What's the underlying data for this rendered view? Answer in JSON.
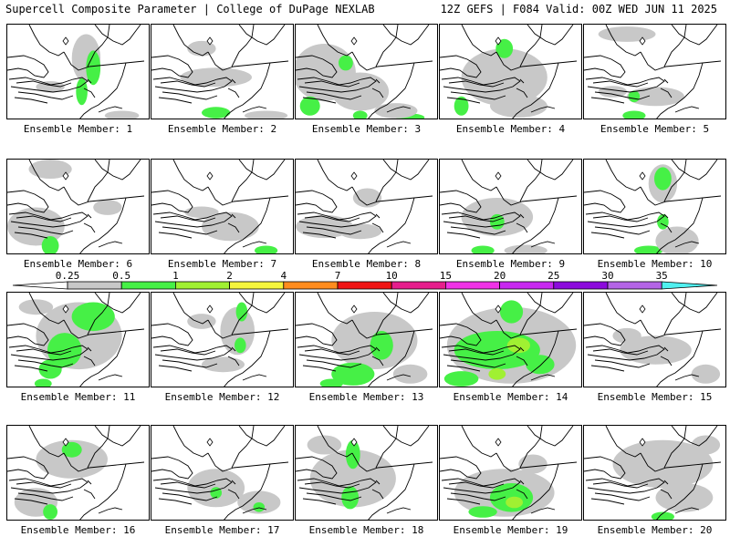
{
  "header": {
    "left_title": "Supercell Composite Parameter | College of DuPage NEXLAB",
    "right_title": "12Z GEFS | F084 Valid: 00Z WED JUN 11 2025"
  },
  "legend": {
    "thresholds": [
      "0.25",
      "0.5",
      "1",
      "2",
      "4",
      "7",
      "10",
      "15",
      "20",
      "25",
      "30",
      "35"
    ],
    "colors": [
      "#ffffff",
      "#c8c8c8",
      "#46f046",
      "#a0f032",
      "#f5f53c",
      "#ff8c1e",
      "#f01414",
      "#e61e8c",
      "#f032e6",
      "#c828f0",
      "#8c0adc",
      "#b464e6",
      "#50f0f0"
    ]
  },
  "member_label_prefix": "Ensemble Member: ",
  "members": [
    {
      "id": "1",
      "label": "Ensemble Member: 1",
      "blobs": [
        [
          "g",
          0.55,
          0.35,
          0.1,
          0.25
        ],
        [
          "G",
          0.6,
          0.45,
          0.05,
          0.18
        ],
        [
          "G",
          0.52,
          0.7,
          0.04,
          0.14
        ],
        [
          "g",
          0.8,
          0.95,
          0.12,
          0.05
        ],
        [
          "g",
          0.3,
          0.65,
          0.1,
          0.06
        ]
      ]
    },
    {
      "id": "2",
      "label": "Ensemble Member: 2",
      "blobs": [
        [
          "g",
          0.45,
          0.55,
          0.25,
          0.1
        ],
        [
          "g",
          0.35,
          0.25,
          0.1,
          0.08
        ],
        [
          "G",
          0.45,
          0.92,
          0.1,
          0.06
        ],
        [
          "g",
          0.8,
          0.95,
          0.15,
          0.05
        ]
      ]
    },
    {
      "id": "3",
      "label": "Ensemble Member: 3",
      "blobs": [
        [
          "g",
          0.2,
          0.5,
          0.22,
          0.3
        ],
        [
          "G",
          0.1,
          0.85,
          0.07,
          0.1
        ],
        [
          "G",
          0.35,
          0.4,
          0.05,
          0.08
        ],
        [
          "g",
          0.45,
          0.7,
          0.2,
          0.2
        ],
        [
          "G",
          0.45,
          0.95,
          0.05,
          0.05
        ],
        [
          "G",
          0.8,
          0.97,
          0.1,
          0.04
        ],
        [
          "g",
          0.7,
          0.9,
          0.15,
          0.08
        ]
      ]
    },
    {
      "id": "4",
      "label": "Ensemble Member: 4",
      "blobs": [
        [
          "g",
          0.45,
          0.55,
          0.3,
          0.3
        ],
        [
          "G",
          0.45,
          0.25,
          0.06,
          0.1
        ],
        [
          "G",
          0.15,
          0.85,
          0.05,
          0.1
        ],
        [
          "g",
          0.55,
          0.85,
          0.2,
          0.12
        ]
      ]
    },
    {
      "id": "5",
      "label": "Ensemble Member: 5",
      "blobs": [
        [
          "g",
          0.3,
          0.1,
          0.2,
          0.08
        ],
        [
          "g",
          0.5,
          0.75,
          0.2,
          0.1
        ],
        [
          "G",
          0.35,
          0.75,
          0.04,
          0.06
        ],
        [
          "G",
          0.35,
          0.95,
          0.08,
          0.05
        ],
        [
          "g",
          0.2,
          0.7,
          0.1,
          0.06
        ]
      ]
    },
    {
      "id": "6",
      "label": "Ensemble Member: 6",
      "blobs": [
        [
          "g",
          0.3,
          0.1,
          0.15,
          0.1
        ],
        [
          "g",
          0.2,
          0.7,
          0.2,
          0.2
        ],
        [
          "G",
          0.3,
          0.9,
          0.06,
          0.1
        ],
        [
          "g",
          0.7,
          0.5,
          0.1,
          0.08
        ]
      ]
    },
    {
      "id": "7",
      "label": "Ensemble Member: 7",
      "blobs": [
        [
          "g",
          0.55,
          0.7,
          0.2,
          0.15
        ],
        [
          "G",
          0.8,
          0.95,
          0.08,
          0.05
        ],
        [
          "g",
          0.35,
          0.55,
          0.12,
          0.06
        ]
      ]
    },
    {
      "id": "8",
      "label": "Ensemble Member: 8",
      "blobs": [
        [
          "g",
          0.5,
          0.4,
          0.1,
          0.1
        ],
        [
          "g",
          0.2,
          0.7,
          0.2,
          0.12
        ],
        [
          "g",
          0.45,
          0.75,
          0.15,
          0.08
        ]
      ]
    },
    {
      "id": "9",
      "label": "Ensemble Member: 9",
      "blobs": [
        [
          "g",
          0.4,
          0.6,
          0.25,
          0.2
        ],
        [
          "G",
          0.4,
          0.65,
          0.05,
          0.08
        ],
        [
          "G",
          0.3,
          0.95,
          0.08,
          0.05
        ],
        [
          "g",
          0.6,
          0.95,
          0.15,
          0.06
        ]
      ]
    },
    {
      "id": "10",
      "label": "Ensemble Member: 10",
      "blobs": [
        [
          "g",
          0.55,
          0.25,
          0.1,
          0.2
        ],
        [
          "G",
          0.55,
          0.2,
          0.06,
          0.12
        ],
        [
          "G",
          0.55,
          0.65,
          0.04,
          0.08
        ],
        [
          "G",
          0.45,
          0.95,
          0.1,
          0.05
        ],
        [
          "g",
          0.65,
          0.85,
          0.15,
          0.15
        ]
      ]
    },
    {
      "id": "11",
      "label": "Ensemble Member: 11",
      "blobs": [
        [
          "g",
          0.5,
          0.45,
          0.3,
          0.35
        ],
        [
          "G",
          0.6,
          0.25,
          0.15,
          0.15
        ],
        [
          "G",
          0.4,
          0.6,
          0.12,
          0.18
        ],
        [
          "G",
          0.3,
          0.8,
          0.08,
          0.1
        ],
        [
          "g",
          0.2,
          0.15,
          0.12,
          0.08
        ],
        [
          "G",
          0.25,
          0.95,
          0.06,
          0.05
        ]
      ]
    },
    {
      "id": "12",
      "label": "Ensemble Member: 12",
      "blobs": [
        [
          "g",
          0.6,
          0.4,
          0.12,
          0.25
        ],
        [
          "G",
          0.63,
          0.2,
          0.04,
          0.1
        ],
        [
          "G",
          0.62,
          0.55,
          0.04,
          0.08
        ],
        [
          "g",
          0.35,
          0.3,
          0.1,
          0.08
        ],
        [
          "g",
          0.5,
          0.75,
          0.15,
          0.08
        ]
      ]
    },
    {
      "id": "13",
      "label": "Ensemble Member: 13",
      "blobs": [
        [
          "g",
          0.55,
          0.5,
          0.3,
          0.3
        ],
        [
          "G",
          0.6,
          0.55,
          0.08,
          0.15
        ],
        [
          "G",
          0.4,
          0.85,
          0.15,
          0.12
        ],
        [
          "G",
          0.25,
          0.95,
          0.08,
          0.05
        ],
        [
          "g",
          0.8,
          0.85,
          0.12,
          0.1
        ]
      ]
    },
    {
      "id": "14",
      "label": "Ensemble Member: 14",
      "blobs": [
        [
          "g",
          0.5,
          0.55,
          0.45,
          0.4
        ],
        [
          "G",
          0.4,
          0.6,
          0.3,
          0.2
        ],
        [
          "Y",
          0.55,
          0.55,
          0.08,
          0.08
        ],
        [
          "Y",
          0.4,
          0.85,
          0.06,
          0.06
        ],
        [
          "G",
          0.15,
          0.9,
          0.12,
          0.08
        ],
        [
          "G",
          0.5,
          0.2,
          0.08,
          0.12
        ],
        [
          "G",
          0.7,
          0.75,
          0.1,
          0.1
        ]
      ]
    },
    {
      "id": "15",
      "label": "Ensemble Member: 15",
      "blobs": [
        [
          "g",
          0.5,
          0.6,
          0.25,
          0.15
        ],
        [
          "g",
          0.85,
          0.85,
          0.1,
          0.1
        ],
        [
          "g",
          0.3,
          0.45,
          0.1,
          0.08
        ]
      ]
    },
    {
      "id": "16",
      "label": "Ensemble Member: 16",
      "blobs": [
        [
          "g",
          0.45,
          0.35,
          0.25,
          0.2
        ],
        [
          "G",
          0.45,
          0.25,
          0.07,
          0.08
        ],
        [
          "g",
          0.2,
          0.8,
          0.15,
          0.15
        ],
        [
          "G",
          0.3,
          0.9,
          0.05,
          0.08
        ]
      ]
    },
    {
      "id": "17",
      "label": "Ensemble Member: 17",
      "blobs": [
        [
          "g",
          0.45,
          0.65,
          0.2,
          0.2
        ],
        [
          "G",
          0.45,
          0.7,
          0.04,
          0.06
        ],
        [
          "g",
          0.75,
          0.8,
          0.15,
          0.12
        ],
        [
          "G",
          0.75,
          0.85,
          0.04,
          0.05
        ]
      ]
    },
    {
      "id": "18",
      "label": "Ensemble Member: 18",
      "blobs": [
        [
          "g",
          0.4,
          0.55,
          0.3,
          0.3
        ],
        [
          "G",
          0.4,
          0.3,
          0.05,
          0.15
        ],
        [
          "G",
          0.38,
          0.75,
          0.06,
          0.12
        ],
        [
          "g",
          0.2,
          0.2,
          0.12,
          0.1
        ]
      ]
    },
    {
      "id": "19",
      "label": "Ensemble Member: 19",
      "blobs": [
        [
          "g",
          0.45,
          0.7,
          0.35,
          0.25
        ],
        [
          "G",
          0.5,
          0.75,
          0.15,
          0.15
        ],
        [
          "Y",
          0.52,
          0.8,
          0.06,
          0.06
        ],
        [
          "G",
          0.3,
          0.9,
          0.1,
          0.06
        ],
        [
          "g",
          0.65,
          0.4,
          0.1,
          0.1
        ]
      ]
    },
    {
      "id": "20",
      "label": "Ensemble Member: 20",
      "blobs": [
        [
          "g",
          0.55,
          0.4,
          0.35,
          0.25
        ],
        [
          "g",
          0.7,
          0.75,
          0.2,
          0.15
        ],
        [
          "G",
          0.55,
          0.95,
          0.08,
          0.05
        ],
        [
          "g",
          0.85,
          0.2,
          0.1,
          0.1
        ]
      ]
    }
  ],
  "palette": {
    "g": "#c8c8c8",
    "G": "#46f046",
    "Y": "#a0f032"
  }
}
